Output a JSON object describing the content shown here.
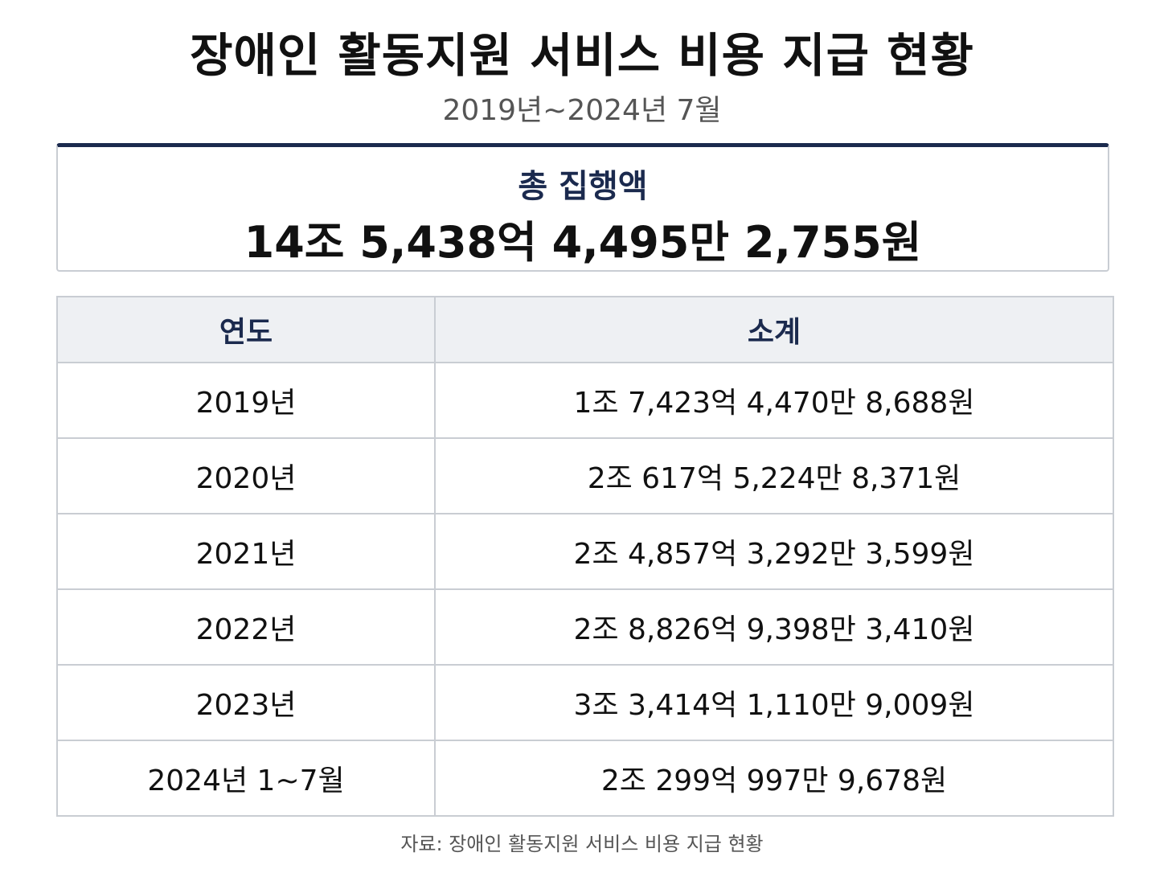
{
  "title": "장애인 활동지원 서비스 비용 지급 현황",
  "subtitle": "2019년~2024년 7월",
  "summary": {
    "label": "총 집행액",
    "value": "14조 5,438억 4,495만 2,755원"
  },
  "chart_data": {
    "type": "table",
    "columns": [
      "연도",
      "소계"
    ],
    "rows": [
      {
        "year": "2019년",
        "amount": "1조 7,423억 4,470만 8,688원"
      },
      {
        "year": "2020년",
        "amount": "2조 617억 5,224만 8,371원"
      },
      {
        "year": "2021년",
        "amount": "2조 4,857억 3,292만 3,599원"
      },
      {
        "year": "2022년",
        "amount": "2조 8,826억 9,398만 3,410원"
      },
      {
        "year": "2023년",
        "amount": "3조 3,414억 1,110만 9,009원"
      },
      {
        "year": "2024년 1~7월",
        "amount": "2조 299억 997만 9,678원"
      }
    ]
  },
  "source": "자료: 장애인 활동지원 서비스 비용 지급 현황",
  "colors": {
    "accent": "#1b2a4e",
    "header_bg": "#eef0f3",
    "border": "#c9cdd3"
  }
}
